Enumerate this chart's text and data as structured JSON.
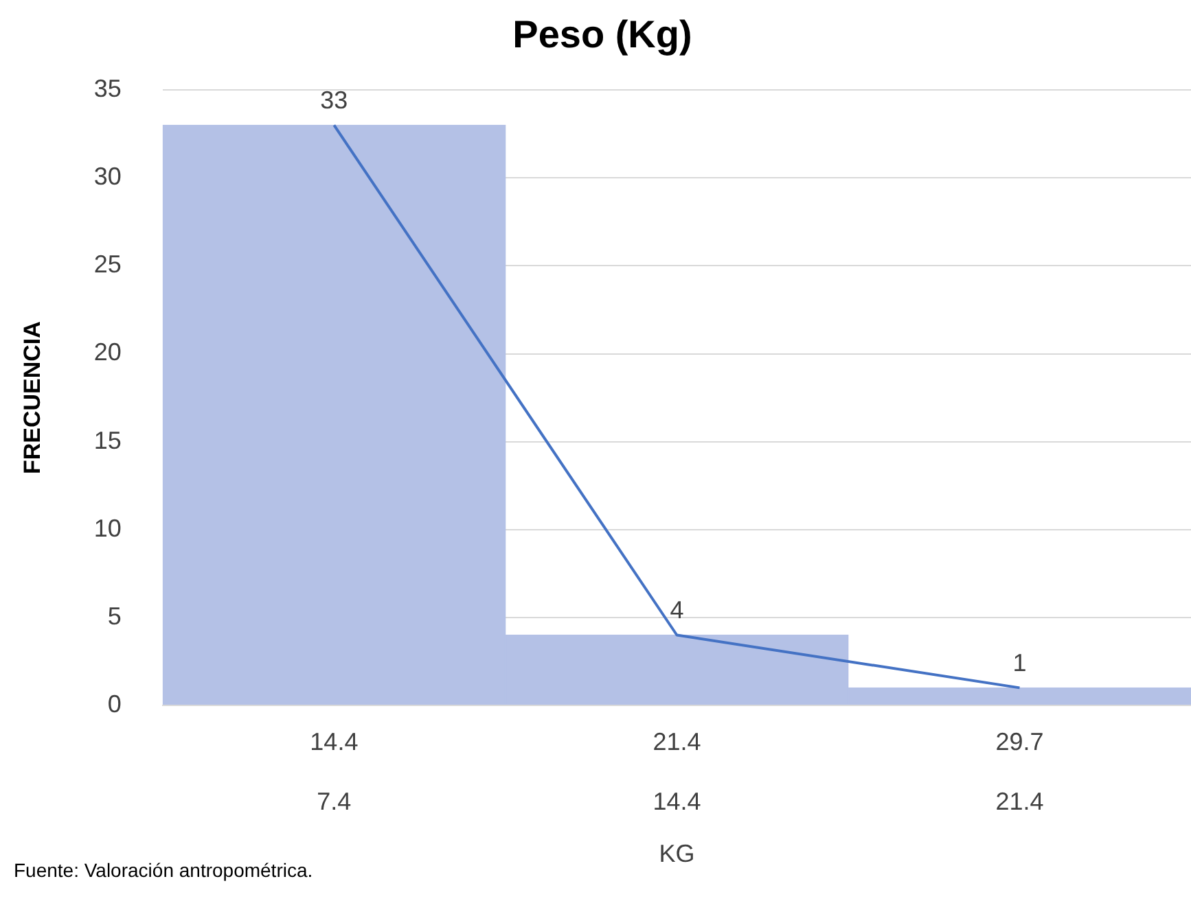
{
  "chart_data": {
    "type": "bar",
    "title": "Peso (Kg)",
    "xlabel": "KG",
    "ylabel": "FRECUENCIA",
    "categories": [
      "14.4\n7.4",
      "21.4\n14.4",
      "29.7\n21.4"
    ],
    "series": [
      {
        "color": "#b4c1e6",
        "values": [
          33,
          4,
          1
        ]
      },
      {
        "type": "line",
        "color": "#4472c4",
        "values": [
          33,
          4,
          1
        ],
        "value_labels": [
          "33",
          "4",
          "1"
        ]
      }
    ],
    "ylim": [
      0,
      35
    ],
    "yticks": [
      0,
      5,
      10,
      15,
      20,
      25,
      30,
      35
    ],
    "grid": "y",
    "legend": false,
    "marker": "none",
    "annotations": [
      "Fuente: Valoración antropométrica."
    ]
  }
}
